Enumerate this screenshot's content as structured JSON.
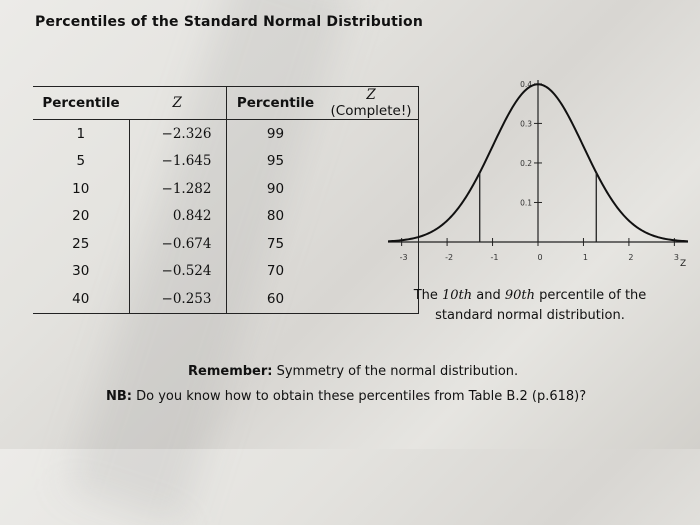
{
  "title": "Percentiles of the Standard Normal Distribution",
  "table": {
    "headers": [
      "Percentile",
      "Z",
      "Percentile",
      "Z",
      "(Complete!)"
    ],
    "rows": [
      {
        "p1": "1",
        "z1": "−2.326",
        "p2": "99",
        "z2": ""
      },
      {
        "p1": "5",
        "z1": "−1.645",
        "p2": "95",
        "z2": ""
      },
      {
        "p1": "10",
        "z1": "−1.282",
        "p2": "90",
        "z2": ""
      },
      {
        "p1": "20",
        "z1": "0.842",
        "p2": "80",
        "z2": ""
      },
      {
        "p1": "25",
        "z1": "−0.674",
        "p2": "75",
        "z2": ""
      },
      {
        "p1": "30",
        "z1": "−0.524",
        "p2": "70",
        "z2": ""
      },
      {
        "p1": "40",
        "z1": "−0.253",
        "p2": "60",
        "z2": ""
      }
    ]
  },
  "chart_data": {
    "type": "line",
    "title": "",
    "xlabel": "z",
    "ylabel": "",
    "xlim": [
      -3.3,
      3.3
    ],
    "ylim": [
      0,
      0.42
    ],
    "x_ticks": [
      "-3",
      "-2",
      "-1",
      "0",
      "1",
      "2",
      "3"
    ],
    "y_ticks": [
      "0.1",
      "0.2",
      "0.3",
      "0.4"
    ],
    "series": [
      {
        "function": "standard normal density"
      }
    ],
    "markers": [
      -1.282,
      1.282
    ]
  },
  "caption": {
    "pre": "The ",
    "p10": "10th",
    "mid": " and ",
    "p90": "90th",
    "post": " percentile of the standard normal distribution."
  },
  "remember": {
    "label": "Remember:",
    "text": " Symmetry of the normal distribution."
  },
  "nb": {
    "label": "NB:",
    "text": " Do you know how to obtain these percentiles from Table B.2 (p.618)?"
  }
}
